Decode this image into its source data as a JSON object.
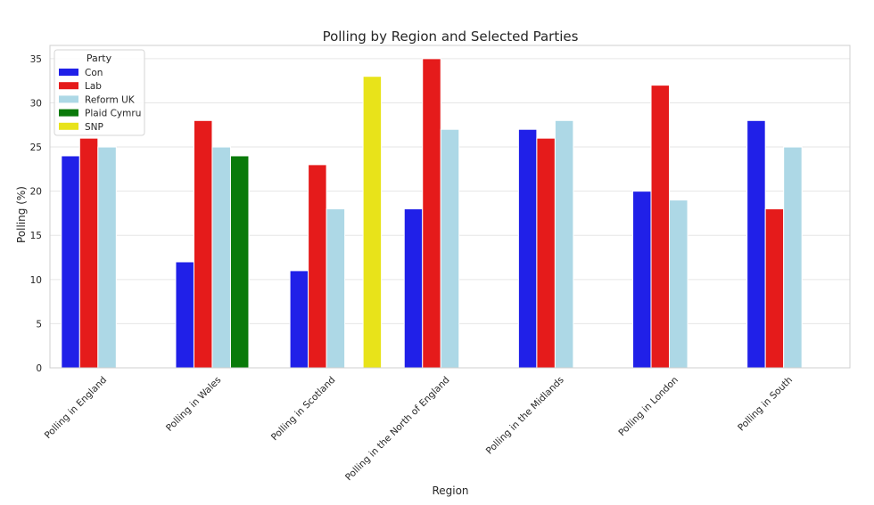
{
  "chart_data": {
    "type": "bar",
    "title": "Polling by Region and Selected Parties",
    "xlabel": "Region",
    "ylabel": "Polling (%)",
    "ylim": [
      0,
      36.5
    ],
    "yticks": [
      0,
      5,
      10,
      15,
      20,
      25,
      30,
      35
    ],
    "grid": "horizontal",
    "legend_title": "Party",
    "legend_placement": "top-left",
    "categories": [
      "Polling in England",
      "Polling in Wales",
      "Polling in Scotland",
      "Polling in the North of England",
      "Polling in the Midlands",
      "Polling in London",
      "Polling in South"
    ],
    "series": [
      {
        "name": "Con",
        "color": "#2020e8",
        "values": [
          24,
          12,
          11,
          18,
          27,
          20,
          28
        ]
      },
      {
        "name": "Lab",
        "color": "#e51b1b",
        "values": [
          26,
          28,
          23,
          35,
          26,
          32,
          18
        ]
      },
      {
        "name": "Reform UK",
        "color": "#add8e6",
        "values": [
          25,
          25,
          18,
          27,
          28,
          19,
          25
        ]
      },
      {
        "name": "Plaid Cymru",
        "color": "#0a7a0a",
        "values": [
          null,
          24,
          null,
          null,
          null,
          null,
          null
        ]
      },
      {
        "name": "SNP",
        "color": "#e8e31a",
        "values": [
          null,
          null,
          33,
          null,
          null,
          null,
          null
        ]
      }
    ]
  }
}
